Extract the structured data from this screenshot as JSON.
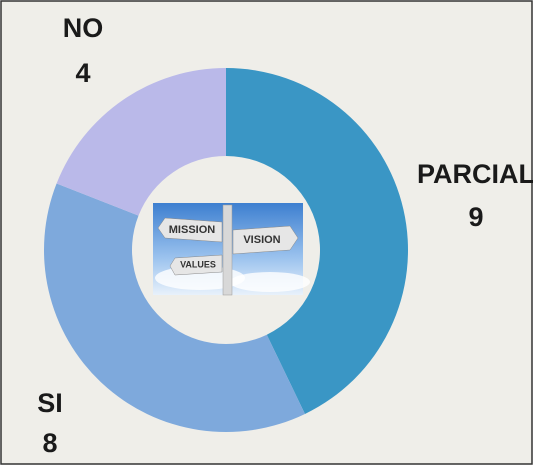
{
  "chart_data": {
    "type": "donut",
    "categories": [
      "PARCIAL",
      "SI",
      "NO"
    ],
    "values": [
      9,
      8,
      4
    ],
    "colors": [
      "#3a96c5",
      "#7ea9dc",
      "#bab9e9"
    ],
    "annotations": [
      "MISSION",
      "VISION",
      "VALUES"
    ]
  }
}
